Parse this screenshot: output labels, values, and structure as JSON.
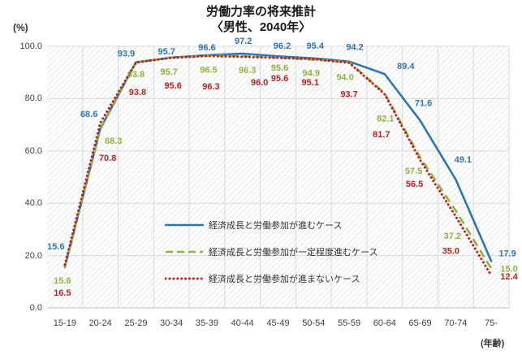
{
  "title": {
    "line1": "労働力率の将来推計",
    "line2": "〈男性、2040年〉"
  },
  "y_axis": {
    "unit_label": "(%)",
    "tick_labels": [
      "100.0",
      "80.0",
      "60.0",
      "40.0",
      "20.0",
      "0.0"
    ]
  },
  "x_axis": {
    "unit_label": "(年齢)"
  },
  "chart_data": {
    "type": "line",
    "title": "労働力率の将来推計〈男性、2040年〉",
    "xlabel": "(年齢)",
    "ylabel": "(%)",
    "ylim": [
      0,
      100
    ],
    "y_tick_step": 20,
    "grid": true,
    "plot_background": "diagonal-hatch",
    "legend_position": "inside-lower-center",
    "categories": [
      "15-19",
      "20-24",
      "25-29",
      "30-34",
      "35-39",
      "40-44",
      "45-49",
      "50-54",
      "55-59",
      "60-64",
      "65-69",
      "70-74",
      "75-"
    ],
    "series": [
      {
        "name": "経済成長と労働参加が進むケース",
        "color": "#2E75B6",
        "line_style": "solid",
        "values": [
          15.6,
          68.6,
          93.9,
          95.7,
          96.6,
          97.2,
          96.2,
          95.4,
          94.2,
          89.4,
          71.6,
          49.1,
          17.9
        ],
        "label_offsets": [
          [
            -11,
            -25
          ],
          [
            -14,
            -17
          ],
          [
            -12,
            -10
          ],
          [
            -6,
            -7
          ],
          [
            0,
            -9
          ],
          [
            1,
            -15
          ],
          [
            5,
            -12
          ],
          [
            2,
            -15
          ],
          [
            7,
            -17
          ],
          [
            26,
            -9
          ],
          [
            4,
            -21
          ],
          [
            9,
            -24
          ],
          [
            20,
            -9
          ]
        ]
      },
      {
        "name": "経済成長と労働参加が一定程度進むケース",
        "color": "#8CB43E",
        "line_style": "dashed",
        "values": [
          15.6,
          68.3,
          93.8,
          95.7,
          96.5,
          96.3,
          95.6,
          94.9,
          94.0,
          82.1,
          57.5,
          37.2,
          15.0
        ],
        "label_offsets": [
          [
            -3,
            17
          ],
          [
            16,
            15
          ],
          [
            0,
            15
          ],
          [
            -3,
            18
          ],
          [
            2,
            18
          ],
          [
            6,
            18
          ],
          [
            2,
            13
          ],
          [
            -3,
            17
          ],
          [
            -5,
            19
          ],
          [
            1,
            32
          ],
          [
            -8,
            17
          ],
          [
            -4,
            32
          ],
          [
            22,
            1
          ]
        ]
      },
      {
        "name": "経済成長と労働参加が進まないケース",
        "color": "#C01F1F",
        "line_style": "dotted",
        "values": [
          16.5,
          70.8,
          93.8,
          95.6,
          96.3,
          96.0,
          95.6,
          95.1,
          93.7,
          81.7,
          56.5,
          35.0,
          12.4
        ],
        "label_offsets": [
          [
            -3,
            35
          ],
          [
            9,
            44
          ],
          [
            2,
            37
          ],
          [
            2,
            35
          ],
          [
            5,
            38
          ],
          [
            21,
            32
          ],
          [
            2,
            26
          ],
          [
            -4,
            29
          ],
          [
            0,
            39
          ],
          [
            -4,
            50
          ],
          [
            -7,
            30
          ],
          [
            -6,
            43
          ],
          [
            22,
            2
          ]
        ]
      }
    ]
  }
}
